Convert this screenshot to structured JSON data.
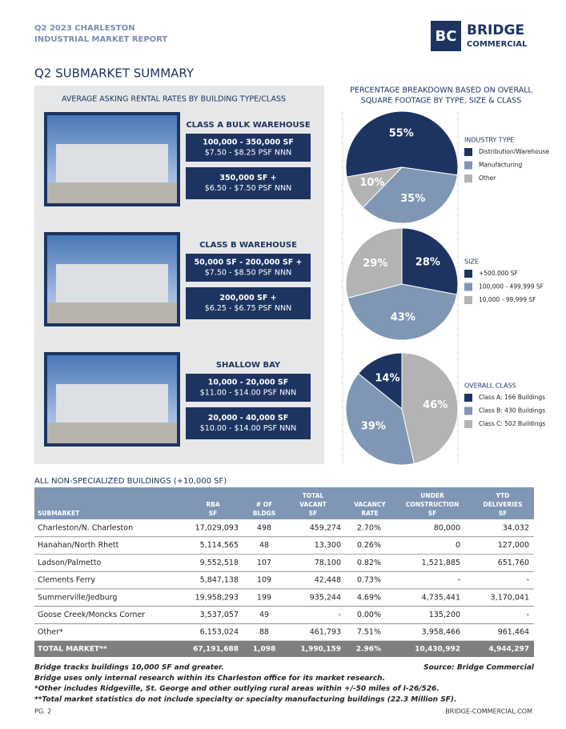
{
  "header": {
    "report_title": [
      "Q2 2023 CHARLESTON",
      "INDUSTRIAL MARKET REPORT"
    ],
    "logo": {
      "mark": "BC",
      "name": "BRIDGE",
      "subname": "COMMERCIAL"
    }
  },
  "section_title": "Q2 SUBMARKET SUMMARY",
  "rental_rates": {
    "title": "AVERAGE ASKING RENTAL RATES BY BUILDING TYPE/CLASS",
    "groups": [
      {
        "heading": "CLASS A BULK WAREHOUSE",
        "rates": [
          {
            "size": "100,000 - 350,000 SF",
            "rate": "$7.50 - $8.25 PSF NNN"
          },
          {
            "size": "350,000 SF +",
            "rate": "$6.50 - $7.50 PSF NNN"
          }
        ]
      },
      {
        "heading": "CLASS B WAREHOUSE",
        "rates": [
          {
            "size": "50,000 SF - 200,000 SF +",
            "rate": "$7.50 - $8.50 PSF NNN"
          },
          {
            "size": "200,000 SF +",
            "rate": "$6.25 - $6.75 PSF NNN"
          }
        ]
      },
      {
        "heading": "SHALLOW BAY",
        "rates": [
          {
            "size": "10,000 - 20,000 SF",
            "rate": "$11.00 - $14.00 PSF NNN"
          },
          {
            "size": "20,000 - 40,000 SF",
            "rate": "$10.00 - $14.00 PSF NNN"
          }
        ]
      }
    ]
  },
  "breakdown_title": [
    "PERCENTAGE BREAKDOWN BASED ON OVERALL",
    "SQUARE FOOTAGE BY TYPE, SIZE & CLASS"
  ],
  "chart_data": [
    {
      "type": "pie",
      "legend_title": "INDUSTRY TYPE",
      "categories": [
        "Distribution/Warehouse",
        "Manufacturing",
        "Other"
      ],
      "values": [
        55,
        35,
        10
      ],
      "value_labels": [
        "55%",
        "35%",
        "10%"
      ],
      "colors": [
        "#1d3461",
        "#7f96b4",
        "#b3b3b3"
      ]
    },
    {
      "type": "pie",
      "legend_title": "SIZE",
      "categories": [
        "+500,000 SF",
        "100,000 - 499,999 SF",
        "10,000 - 99,999 SF"
      ],
      "values": [
        28,
        43,
        29
      ],
      "value_labels": [
        "28%",
        "43%",
        "29%"
      ],
      "colors": [
        "#1d3461",
        "#7f96b4",
        "#b3b3b3"
      ]
    },
    {
      "type": "pie",
      "legend_title": "OVERALL CLASS",
      "categories": [
        "Class A:  166 Buildings",
        "Class B:  430 Buildings",
        "Class C:  502 Buildings"
      ],
      "values": [
        14,
        39,
        46
      ],
      "value_labels": [
        "14%",
        "39%",
        "46%"
      ],
      "colors": [
        "#1d3461",
        "#7f96b4",
        "#b3b3b3"
      ]
    }
  ],
  "table": {
    "title": "ALL NON-SPECIALIZED BUILDINGS (+10,000 SF)",
    "columns": [
      [
        "SUBMARKET"
      ],
      [
        "RBA",
        "SF"
      ],
      [
        "# OF",
        "BLDGS"
      ],
      [
        "TOTAL",
        "VACANT",
        "SF"
      ],
      [
        "VACANCY",
        "RATE"
      ],
      [
        "UNDER",
        "CONSTRUCTION",
        "SF"
      ],
      [
        "YTD",
        "DELIVERIES",
        "SF"
      ]
    ],
    "rows": [
      [
        "Charleston/N. Charleston",
        "17,029,093",
        "498",
        "459,274",
        "2.70%",
        "80,000",
        "34,032"
      ],
      [
        "Hanahan/North Rhett",
        "5,114,565",
        "48",
        "13,300",
        "0.26%",
        "0",
        "127,000"
      ],
      [
        "Ladson/Palmetto",
        "9,552,518",
        "107",
        "78,100",
        "0.82%",
        "1,521,885",
        "651,760"
      ],
      [
        "Clements Ferry",
        "5,847,138",
        "109",
        "42,448",
        "0.73%",
        "-",
        "-"
      ],
      [
        "Summerville/Jedburg",
        "19,958,293",
        "199",
        "935,244",
        "4.69%",
        "4,735,441",
        "3,170,041"
      ],
      [
        "Goose Creek/Moncks Corner",
        "3,537,057",
        "49",
        "-",
        "0.00%",
        "135,200",
        "-"
      ],
      [
        "Other*",
        "6,153,024",
        "88",
        "461,793",
        "7.51%",
        "3,958,466",
        "961,464"
      ]
    ],
    "total": [
      "TOTAL MARKET**",
      "67,191,688",
      "1,098",
      "1,990,159",
      "2.96%",
      "10,430,992",
      "4,944,297"
    ]
  },
  "notes": [
    "Bridge tracks buildings 10,000 SF and greater.",
    "Bridge uses only internal research within its Charleston office for its market research.",
    "*Other includes Ridgeville, St. George and other outlying rural areas within +/-50 miles of I-26/526.",
    "**Total market statistics do not include specialty or specialty manufacturing buildings (22.3 Million SF)."
  ],
  "source": "Source:  Bridge Commercial",
  "footer": {
    "page": "PG. 2",
    "url": "BRIDGE-COMMERCIAL.COM"
  }
}
